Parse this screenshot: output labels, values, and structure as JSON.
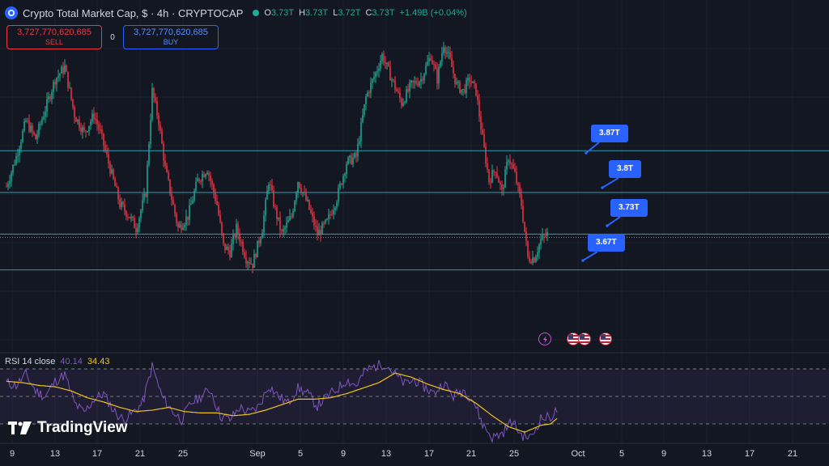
{
  "header": {
    "title": "Crypto Total Market Cap, $ · 4h · CRYPTOCAP",
    "ohlc": [
      {
        "label": "O",
        "value": "3.73T"
      },
      {
        "label": "H",
        "value": "3.73T"
      },
      {
        "label": "L",
        "value": "3.72T"
      },
      {
        "label": "C",
        "value": "3.73T"
      }
    ],
    "change": "+1.49B (+0.04%)"
  },
  "trade": {
    "sell_price": "3,727,770,620,685",
    "sell_label": "SELL",
    "spread": "0",
    "buy_price": "3,727,770,620,685",
    "buy_label": "BUY"
  },
  "price_labels": [
    "3.87T",
    "3.8T",
    "3.73T",
    "3.67T"
  ],
  "rsi": {
    "name": "RSI 14 close",
    "value": "40.14",
    "ma_value": "34.43"
  },
  "logo_text": "TradingView",
  "x_axis_labels": [
    "9",
    "13",
    "17",
    "21",
    "25",
    "Sep",
    "5",
    "9",
    "13",
    "17",
    "21",
    "25",
    "Oct",
    "5",
    "9",
    "13",
    "17",
    "21"
  ],
  "colors": {
    "background": "#131722",
    "up": "#22ab94",
    "down": "#f23645",
    "level_line": "#26a0b5",
    "label_bg": "#2962ff",
    "rsi_line": "#7e57c2",
    "rsi_ma": "#f0c419"
  },
  "chart_data": [
    {
      "type": "candlestick",
      "title": "Crypto Total Market Cap",
      "horizontal_levels": [
        3.87,
        3.8,
        3.73,
        3.67
      ],
      "last_price": 3.73,
      "price_path": [
        [
          0,
          3.81
        ],
        [
          6,
          3.86
        ],
        [
          12,
          3.92
        ],
        [
          18,
          3.89
        ],
        [
          24,
          3.94
        ],
        [
          30,
          3.99
        ],
        [
          36,
          4.01
        ],
        [
          42,
          3.93
        ],
        [
          48,
          3.9
        ],
        [
          54,
          3.93
        ],
        [
          58,
          3.9
        ],
        [
          64,
          3.84
        ],
        [
          70,
          3.78
        ],
        [
          76,
          3.76
        ],
        [
          80,
          3.74
        ],
        [
          86,
          3.8
        ],
        [
          90,
          3.97
        ],
        [
          94,
          3.92
        ],
        [
          98,
          3.84
        ],
        [
          102,
          3.79
        ],
        [
          106,
          3.74
        ],
        [
          112,
          3.76
        ],
        [
          118,
          3.82
        ],
        [
          124,
          3.84
        ],
        [
          130,
          3.78
        ],
        [
          134,
          3.71
        ],
        [
          138,
          3.7
        ],
        [
          142,
          3.74
        ],
        [
          148,
          3.69
        ],
        [
          152,
          3.68
        ],
        [
          158,
          3.74
        ],
        [
          162,
          3.82
        ],
        [
          166,
          3.77
        ],
        [
          170,
          3.73
        ],
        [
          176,
          3.76
        ],
        [
          180,
          3.82
        ],
        [
          186,
          3.78
        ],
        [
          192,
          3.73
        ],
        [
          198,
          3.75
        ],
        [
          204,
          3.79
        ],
        [
          210,
          3.85
        ],
        [
          216,
          3.86
        ],
        [
          222,
          3.96
        ],
        [
          228,
          4.0
        ],
        [
          232,
          4.03
        ],
        [
          238,
          3.99
        ],
        [
          244,
          3.95
        ],
        [
          250,
          3.98
        ],
        [
          256,
          3.99
        ],
        [
          262,
          4.03
        ],
        [
          266,
          3.99
        ],
        [
          270,
          4.05
        ],
        [
          274,
          4.02
        ],
        [
          278,
          3.98
        ],
        [
          282,
          3.97
        ],
        [
          286,
          3.99
        ],
        [
          290,
          3.97
        ],
        [
          294,
          3.89
        ],
        [
          298,
          3.82
        ],
        [
          302,
          3.84
        ],
        [
          306,
          3.8
        ],
        [
          310,
          3.86
        ],
        [
          314,
          3.83
        ],
        [
          318,
          3.78
        ],
        [
          322,
          3.69
        ],
        [
          326,
          3.69
        ],
        [
          330,
          3.72
        ],
        [
          334,
          3.73
        ]
      ]
    },
    {
      "type": "line",
      "title": "RSI 14 close",
      "ylim": [
        0,
        100
      ],
      "series": [
        {
          "name": "RSI",
          "values": [
            [
              0,
              60
            ],
            [
              6,
              58
            ],
            [
              12,
              66
            ],
            [
              18,
              54
            ],
            [
              24,
              50
            ],
            [
              30,
              61
            ],
            [
              36,
              66
            ],
            [
              42,
              45
            ],
            [
              48,
              38
            ],
            [
              54,
              48
            ],
            [
              60,
              52
            ],
            [
              66,
              40
            ],
            [
              72,
              33
            ],
            [
              78,
              38
            ],
            [
              84,
              45
            ],
            [
              90,
              72
            ],
            [
              96,
              50
            ],
            [
              102,
              40
            ],
            [
              108,
              33
            ],
            [
              114,
              45
            ],
            [
              120,
              50
            ],
            [
              126,
              55
            ],
            [
              132,
              36
            ],
            [
              138,
              33
            ],
            [
              144,
              42
            ],
            [
              150,
              38
            ],
            [
              156,
              43
            ],
            [
              162,
              58
            ],
            [
              168,
              50
            ],
            [
              174,
              45
            ],
            [
              180,
              56
            ],
            [
              186,
              52
            ],
            [
              192,
              43
            ],
            [
              198,
              50
            ],
            [
              204,
              55
            ],
            [
              210,
              62
            ],
            [
              216,
              58
            ],
            [
              222,
              69
            ],
            [
              228,
              72
            ],
            [
              234,
              74
            ],
            [
              240,
              66
            ],
            [
              246,
              59
            ],
            [
              252,
              62
            ],
            [
              258,
              57
            ],
            [
              264,
              52
            ],
            [
              270,
              60
            ],
            [
              276,
              50
            ],
            [
              282,
              55
            ],
            [
              288,
              48
            ],
            [
              294,
              30
            ],
            [
              300,
              20
            ],
            [
              306,
              23
            ],
            [
              312,
              32
            ],
            [
              318,
              22
            ],
            [
              324,
              20
            ],
            [
              330,
              34
            ],
            [
              336,
              35
            ],
            [
              340,
              40
            ]
          ]
        },
        {
          "name": "RSI-based MA",
          "values": [
            [
              0,
              61
            ],
            [
              10,
              60
            ],
            [
              20,
              58
            ],
            [
              30,
              57
            ],
            [
              40,
              54
            ],
            [
              50,
              49
            ],
            [
              60,
              46
            ],
            [
              70,
              42
            ],
            [
              80,
              39
            ],
            [
              90,
              40
            ],
            [
              100,
              42
            ],
            [
              110,
              39
            ],
            [
              120,
              38
            ],
            [
              130,
              38
            ],
            [
              140,
              36
            ],
            [
              150,
              37
            ],
            [
              160,
              40
            ],
            [
              170,
              44
            ],
            [
              180,
              48
            ],
            [
              190,
              48
            ],
            [
              200,
              49
            ],
            [
              210,
              52
            ],
            [
              220,
              56
            ],
            [
              230,
              60
            ],
            [
              240,
              67
            ],
            [
              250,
              64
            ],
            [
              260,
              59
            ],
            [
              270,
              55
            ],
            [
              280,
              52
            ],
            [
              290,
              45
            ],
            [
              300,
              36
            ],
            [
              310,
              28
            ],
            [
              320,
              24
            ],
            [
              330,
              29
            ],
            [
              336,
              30
            ],
            [
              340,
              34
            ]
          ]
        }
      ],
      "levels": [
        70,
        50,
        30
      ]
    }
  ]
}
